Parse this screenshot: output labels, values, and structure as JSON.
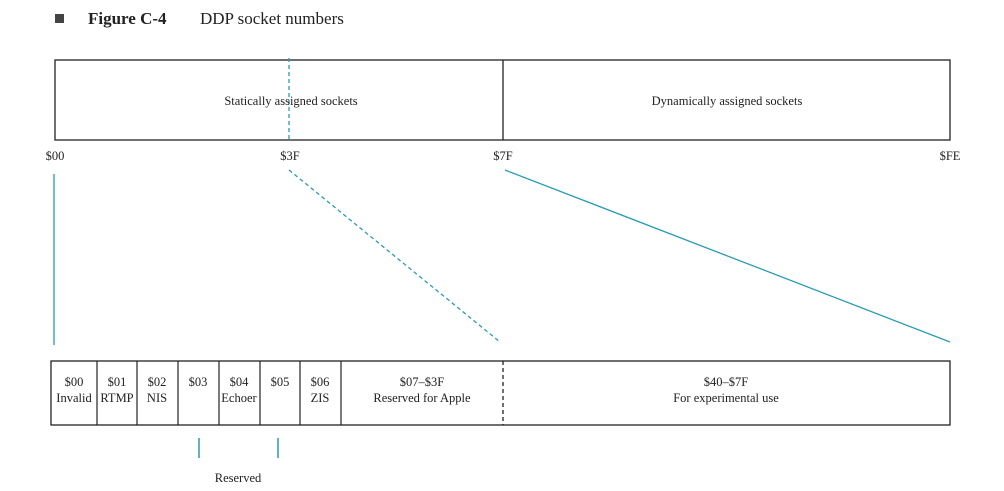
{
  "figure": {
    "label": "Figure C-4",
    "title": "DDP socket numbers"
  },
  "top_bar": {
    "static_label": "Statically assigned sockets",
    "dynamic_label": "Dynamically assigned sockets",
    "ticks": [
      "$00",
      "$3F",
      "$7F",
      "$FE"
    ]
  },
  "cells": [
    {
      "num": "$00",
      "name": "Invalid"
    },
    {
      "num": "$01",
      "name": "RTMP"
    },
    {
      "num": "$02",
      "name": "NIS"
    },
    {
      "num": "$03",
      "name": ""
    },
    {
      "num": "$04",
      "name": "Echoer"
    },
    {
      "num": "$05",
      "name": ""
    },
    {
      "num": "$06",
      "name": "ZIS"
    },
    {
      "num": "$07–$3F",
      "name": "Reserved for Apple"
    },
    {
      "num": "$40–$7F",
      "name": "For experimental use"
    }
  ],
  "reserved_label": "Reserved",
  "colors": {
    "line": "#000000",
    "accent": "#2a9bb5"
  }
}
